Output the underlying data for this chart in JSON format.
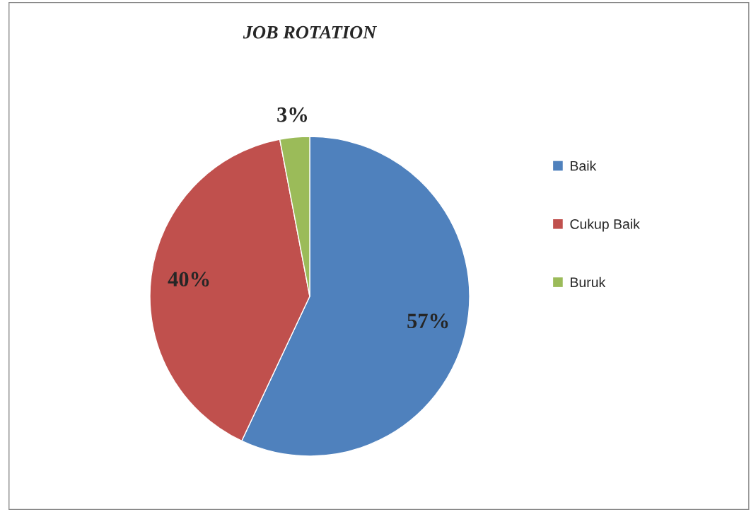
{
  "chart_data": {
    "type": "pie",
    "title": "JOB ROTATION",
    "categories": [
      "Baik",
      "Cukup Baik",
      "Buruk"
    ],
    "values": [
      57,
      40,
      3
    ],
    "colors": [
      "#4f81bd",
      "#c0504d",
      "#9bbb59"
    ],
    "value_labels": [
      "57%",
      "40%",
      "3%"
    ],
    "legend": "right"
  }
}
